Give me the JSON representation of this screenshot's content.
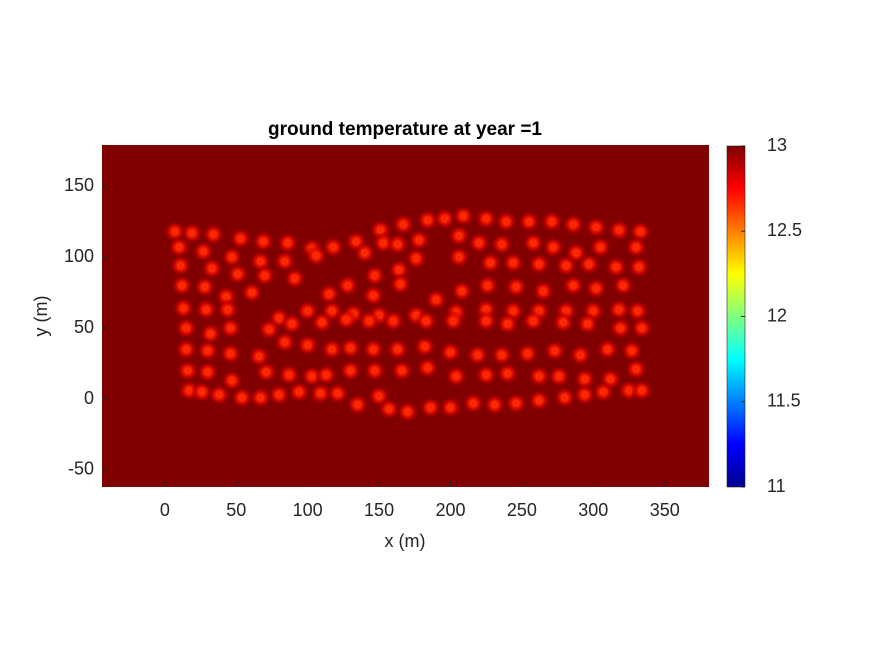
{
  "chart_data": {
    "type": "scatter",
    "title": "ground temperature at year =1",
    "xlabel": "x (m)",
    "ylabel": "y (m)",
    "x": [
      7,
      19,
      34,
      53,
      69,
      86,
      103,
      118,
      134,
      151,
      167,
      184,
      196,
      209,
      225,
      239,
      255,
      271,
      286,
      302,
      318,
      333,
      10,
      27,
      47,
      67,
      84,
      106,
      140,
      153,
      163,
      178,
      206,
      220,
      236,
      258,
      272,
      288,
      305,
      330,
      11,
      33,
      51,
      70,
      91,
      147,
      164,
      176,
      206,
      228,
      244,
      262,
      281,
      297,
      316,
      332,
      12,
      28,
      43,
      61,
      115,
      128,
      146,
      165,
      190,
      208,
      226,
      246,
      265,
      286,
      302,
      321,
      13,
      29,
      44,
      80,
      100,
      117,
      132,
      150,
      176,
      204,
      225,
      244,
      262,
      281,
      300,
      318,
      331,
      15,
      32,
      46,
      73,
      89,
      110,
      127,
      143,
      160,
      183,
      202,
      225,
      240,
      258,
      279,
      296,
      319,
      334,
      15,
      30,
      46,
      66,
      84,
      100,
      117,
      130,
      146,
      163,
      182,
      200,
      219,
      236,
      254,
      273,
      291,
      310,
      327,
      16,
      30,
      47,
      71,
      87,
      103,
      113,
      130,
      147,
      166,
      184,
      204,
      225,
      240,
      262,
      276,
      294,
      312,
      330,
      17,
      26,
      38,
      54,
      67,
      80,
      94,
      109,
      121,
      135,
      150,
      157,
      170,
      186,
      200,
      216,
      231,
      246,
      262,
      280,
      294,
      307,
      325,
      334
    ],
    "values": [
      118,
      117,
      116,
      113,
      111,
      110,
      106,
      107,
      111,
      119,
      123,
      126,
      127,
      129,
      127,
      125,
      125,
      125,
      123,
      121,
      119,
      118,
      107,
      104,
      100,
      97,
      97,
      101,
      103,
      110,
      109,
      112,
      115,
      110,
      109,
      110,
      107,
      103,
      107,
      107,
      94,
      92,
      88,
      87,
      85,
      87,
      91,
      99,
      100,
      96,
      96,
      95,
      94,
      95,
      93,
      93,
      80,
      79,
      72,
      75,
      74,
      80,
      73,
      81,
      70,
      76,
      80,
      79,
      76,
      80,
      78,
      80,
      64,
      63,
      63,
      57,
      62,
      62,
      60,
      59,
      59,
      61,
      63,
      62,
      62,
      62,
      62,
      63,
      62,
      50,
      46,
      50,
      49,
      53,
      54,
      56,
      55,
      55,
      55,
      55,
      55,
      53,
      55,
      54,
      53,
      50,
      50,
      35,
      34,
      32,
      30,
      40,
      38,
      35,
      36,
      35,
      35,
      37,
      33,
      31,
      31,
      32,
      34,
      31,
      35,
      34,
      20,
      19,
      13,
      19,
      17,
      16,
      17,
      20,
      20,
      20,
      22,
      16,
      17,
      18,
      16,
      16,
      14,
      14,
      21,
      6,
      5,
      3,
      1,
      1,
      3,
      5,
      4,
      4,
      -4,
      2,
      -7,
      -9,
      -6,
      -6,
      -3,
      -4,
      -3,
      -1,
      1,
      3,
      5,
      6,
      6
    ],
    "xlim": [
      -44,
      381
    ],
    "ylim": [
      -62,
      179
    ],
    "xticks": [
      0,
      50,
      100,
      150,
      200,
      250,
      300,
      350
    ],
    "yticks": [
      -50,
      0,
      50,
      100,
      150
    ],
    "background_color": "#800000",
    "color": "#ff2400",
    "colorbar": {
      "lim": [
        11,
        13
      ],
      "ticks": [
        11,
        11.5,
        12,
        12.5,
        13
      ]
    }
  }
}
